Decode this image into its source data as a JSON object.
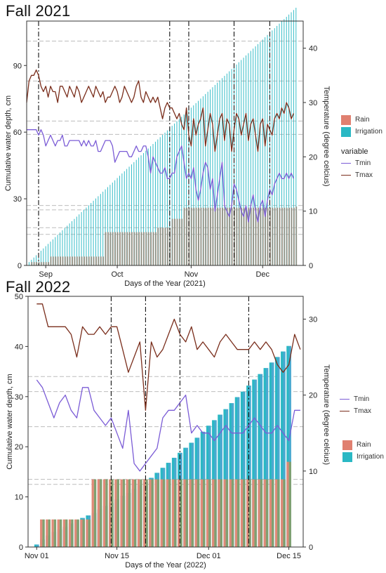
{
  "chart_data": [
    {
      "type": "bar",
      "title": "Fall 2021",
      "xlabel": "Days of the Year (2021)",
      "ylabel": "Cumulative water depth, cm",
      "y2label": "Temperature (degree celcius)",
      "ylim": [
        0,
        110
      ],
      "y2lim": [
        0,
        45
      ],
      "yticks": [
        "0",
        "30",
        "60",
        "90"
      ],
      "y2ticks": [
        "0",
        "10",
        "20",
        "30",
        "40"
      ],
      "xlim": [
        237,
        353
      ],
      "x_ticks": [
        {
          "label": "Sep",
          "day": 245
        },
        {
          "label": "Oct",
          "day": 275
        },
        {
          "label": "Nov",
          "day": 306
        },
        {
          "label": "Dec",
          "day": 336
        }
      ],
      "vlines": [
        242,
        297,
        305,
        324,
        339
      ],
      "hlines": [
        101,
        83,
        65,
        59,
        27,
        25,
        17,
        14
      ],
      "legend_title": "variable",
      "bar_legend": [
        {
          "label": "Rain",
          "color": "#e08070"
        },
        {
          "label": "Irrigation",
          "color": "#2ab8c4"
        }
      ],
      "line_legend": [
        {
          "label": "Tmin",
          "color": "#7b5cd6"
        },
        {
          "label": "Tmax",
          "color": "#7a2e1c"
        }
      ],
      "cum_total": {
        "start_day": 237,
        "end_day": 350,
        "points": [
          [
            237,
            0.5
          ],
          [
            350,
            116
          ]
        ]
      },
      "rain_cum": {
        "start_day": 237,
        "end_day": 350,
        "steps": [
          [
            237,
            0
          ],
          [
            239,
            1.5
          ],
          [
            247,
            4
          ],
          [
            270,
            15
          ],
          [
            292,
            17
          ],
          [
            298,
            21
          ],
          [
            303,
            26
          ],
          [
            350,
            26.5
          ]
        ]
      },
      "series": [
        {
          "name": "Tmax",
          "color": "#7a2e1c",
          "start_day": 237,
          "values": [
            30,
            34,
            35,
            35,
            36,
            35,
            33,
            32,
            33,
            31,
            33,
            32,
            32,
            30,
            33,
            33,
            32,
            31,
            33,
            32,
            31,
            33,
            32,
            30,
            31,
            32,
            33,
            32,
            31,
            33,
            32,
            31,
            32,
            30,
            31,
            31,
            32,
            33,
            32,
            30,
            31,
            33,
            32,
            31,
            30,
            31,
            33,
            34,
            31,
            30,
            32,
            31,
            30,
            31,
            30,
            31,
            29,
            27,
            29,
            30,
            29,
            29,
            28,
            27,
            28,
            26,
            25,
            29,
            24,
            22,
            27,
            24,
            26,
            27,
            29,
            22,
            25,
            28,
            26,
            21,
            24,
            27,
            28,
            23,
            27,
            26,
            21,
            25,
            28,
            27,
            24,
            26,
            28,
            23,
            26,
            27,
            24,
            21,
            26,
            27,
            22,
            26,
            25,
            24,
            27,
            28,
            27,
            29,
            28,
            30,
            29,
            27,
            28
          ]
        },
        {
          "name": "Tmin",
          "color": "#7b5cd6",
          "start_day": 237,
          "values": [
            25,
            25,
            25,
            25,
            25,
            24,
            25,
            24,
            22,
            23,
            24,
            23,
            22,
            23,
            23,
            24,
            22,
            22,
            23,
            23,
            23,
            23,
            23,
            22,
            23,
            22,
            23,
            22,
            22,
            23,
            21,
            21,
            22,
            23,
            23,
            23,
            22,
            19,
            20,
            21,
            21,
            21,
            21,
            20,
            20,
            21,
            22,
            21,
            21,
            22,
            22,
            20,
            17,
            20,
            19,
            18,
            17,
            17,
            18,
            16,
            16,
            17,
            17,
            20,
            21,
            22,
            19,
            16,
            17,
            16,
            18,
            14,
            12,
            14,
            17,
            19,
            18,
            14,
            16,
            10,
            13,
            16,
            19,
            11,
            10,
            9,
            11,
            15,
            14,
            12,
            10,
            9,
            11,
            8,
            11,
            13,
            10,
            8,
            11,
            12,
            9,
            12,
            14,
            13,
            15,
            16,
            17,
            16,
            16,
            17,
            16,
            17,
            16
          ]
        }
      ]
    },
    {
      "type": "bar",
      "title": "Fall 2022",
      "xlabel": "Days of the Year (2022)",
      "ylabel": "Cumulative water depth, cm",
      "y2label": "Temperature (degree celcius)",
      "ylim": [
        0,
        50
      ],
      "y2lim": [
        0,
        33
      ],
      "yticks": [
        "0",
        "10",
        "20",
        "30",
        "40",
        "50"
      ],
      "y2ticks": [
        "0",
        "10",
        "20",
        "30"
      ],
      "xlim": [
        -1.5,
        46.5
      ],
      "x_ticks": [
        {
          "label": "Nov 01",
          "day": 0
        },
        {
          "label": "Nov 15",
          "day": 14
        },
        {
          "label": "Dec 01",
          "day": 30
        },
        {
          "label": "Dec 15",
          "day": 44
        }
      ],
      "vlines": [
        13,
        19,
        25,
        37
      ],
      "hlines": [
        34,
        31,
        24,
        13.5,
        12.5
      ],
      "bar_legend": [
        {
          "label": "Rain",
          "color": "#e08070"
        },
        {
          "label": "Irrigation",
          "color": "#2ab8c4"
        }
      ],
      "line_legend": [
        {
          "label": "Tmin",
          "color": "#7b5cd6"
        },
        {
          "label": "Tmax",
          "color": "#7a2e1c"
        }
      ],
      "bars_total": [
        0.5,
        1.5,
        2.3,
        3.0,
        3.5,
        4.0,
        4.7,
        5.3,
        5.8,
        6.3,
        6.8,
        7.5,
        8.2,
        8.8,
        9.5,
        10.2,
        10.8,
        11.6,
        12.3,
        13.0,
        13.8,
        14.8,
        15.8,
        16.8,
        17.8,
        18.8,
        19.8,
        20.8,
        21.8,
        23.0,
        24.2,
        25.3,
        26.4,
        27.5,
        28.7,
        29.9,
        31.0,
        32.2,
        33.4,
        34.5,
        35.7,
        36.8,
        37.9,
        39.0,
        40.1
      ],
      "bars_rain": [
        0,
        5.5,
        5.5,
        5.5,
        5.5,
        5.5,
        5.5,
        5.5,
        5.5,
        5.5,
        13.5,
        13.5,
        13.5,
        13.5,
        13.5,
        13.5,
        13.5,
        13.5,
        13.5,
        13.5,
        13.5,
        13.5,
        13.5,
        13.5,
        13.5,
        13.5,
        13.5,
        13.5,
        13.5,
        13.5,
        13.5,
        13.5,
        13.5,
        13.5,
        13.5,
        13.5,
        13.5,
        13.5,
        13.5,
        13.5,
        13.5,
        13.5,
        13.5,
        13.5,
        17.0
      ],
      "series": [
        {
          "name": "Tmax",
          "color": "#7a2e1c",
          "values": [
            32,
            32,
            29,
            29,
            29,
            29,
            28,
            25,
            29,
            28,
            28,
            29,
            28,
            29,
            29,
            26,
            23,
            25,
            27,
            18,
            27,
            25,
            26,
            28,
            30,
            28,
            27,
            29,
            26,
            27,
            26,
            25,
            27,
            28,
            27,
            26,
            26,
            26,
            27,
            26,
            27,
            26,
            24,
            23,
            24,
            28,
            26
          ]
        },
        {
          "name": "Tmin",
          "color": "#7b5cd6",
          "values": [
            22,
            21,
            19,
            17,
            19,
            20,
            18,
            17,
            21,
            21,
            18,
            17,
            16,
            17,
            15,
            13,
            18,
            11,
            10,
            11,
            12,
            13,
            17,
            18,
            18,
            19,
            20,
            15,
            16,
            15,
            15,
            14,
            15,
            16,
            15,
            15,
            15,
            16,
            17,
            16,
            15,
            15,
            16,
            15,
            14,
            18,
            18
          ]
        }
      ]
    }
  ]
}
